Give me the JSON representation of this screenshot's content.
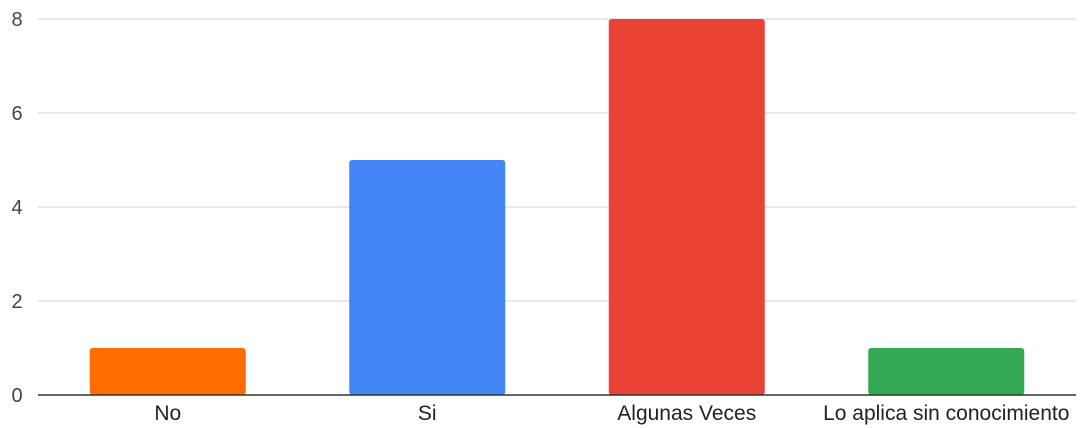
{
  "chart_data": {
    "type": "bar",
    "title": "",
    "xlabel": "",
    "ylabel": "",
    "categories": [
      "No",
      "Si",
      "Algunas Veces",
      "Lo aplica sin conocimiento"
    ],
    "values": [
      1,
      5,
      8,
      1
    ],
    "colors": [
      "#ff6d01",
      "#4285f4",
      "#ea4335",
      "#34a853"
    ],
    "ylim": [
      0,
      8
    ],
    "yticks": [
      "0",
      "2",
      "4",
      "6",
      "8"
    ],
    "grid": true,
    "legend": "none"
  }
}
